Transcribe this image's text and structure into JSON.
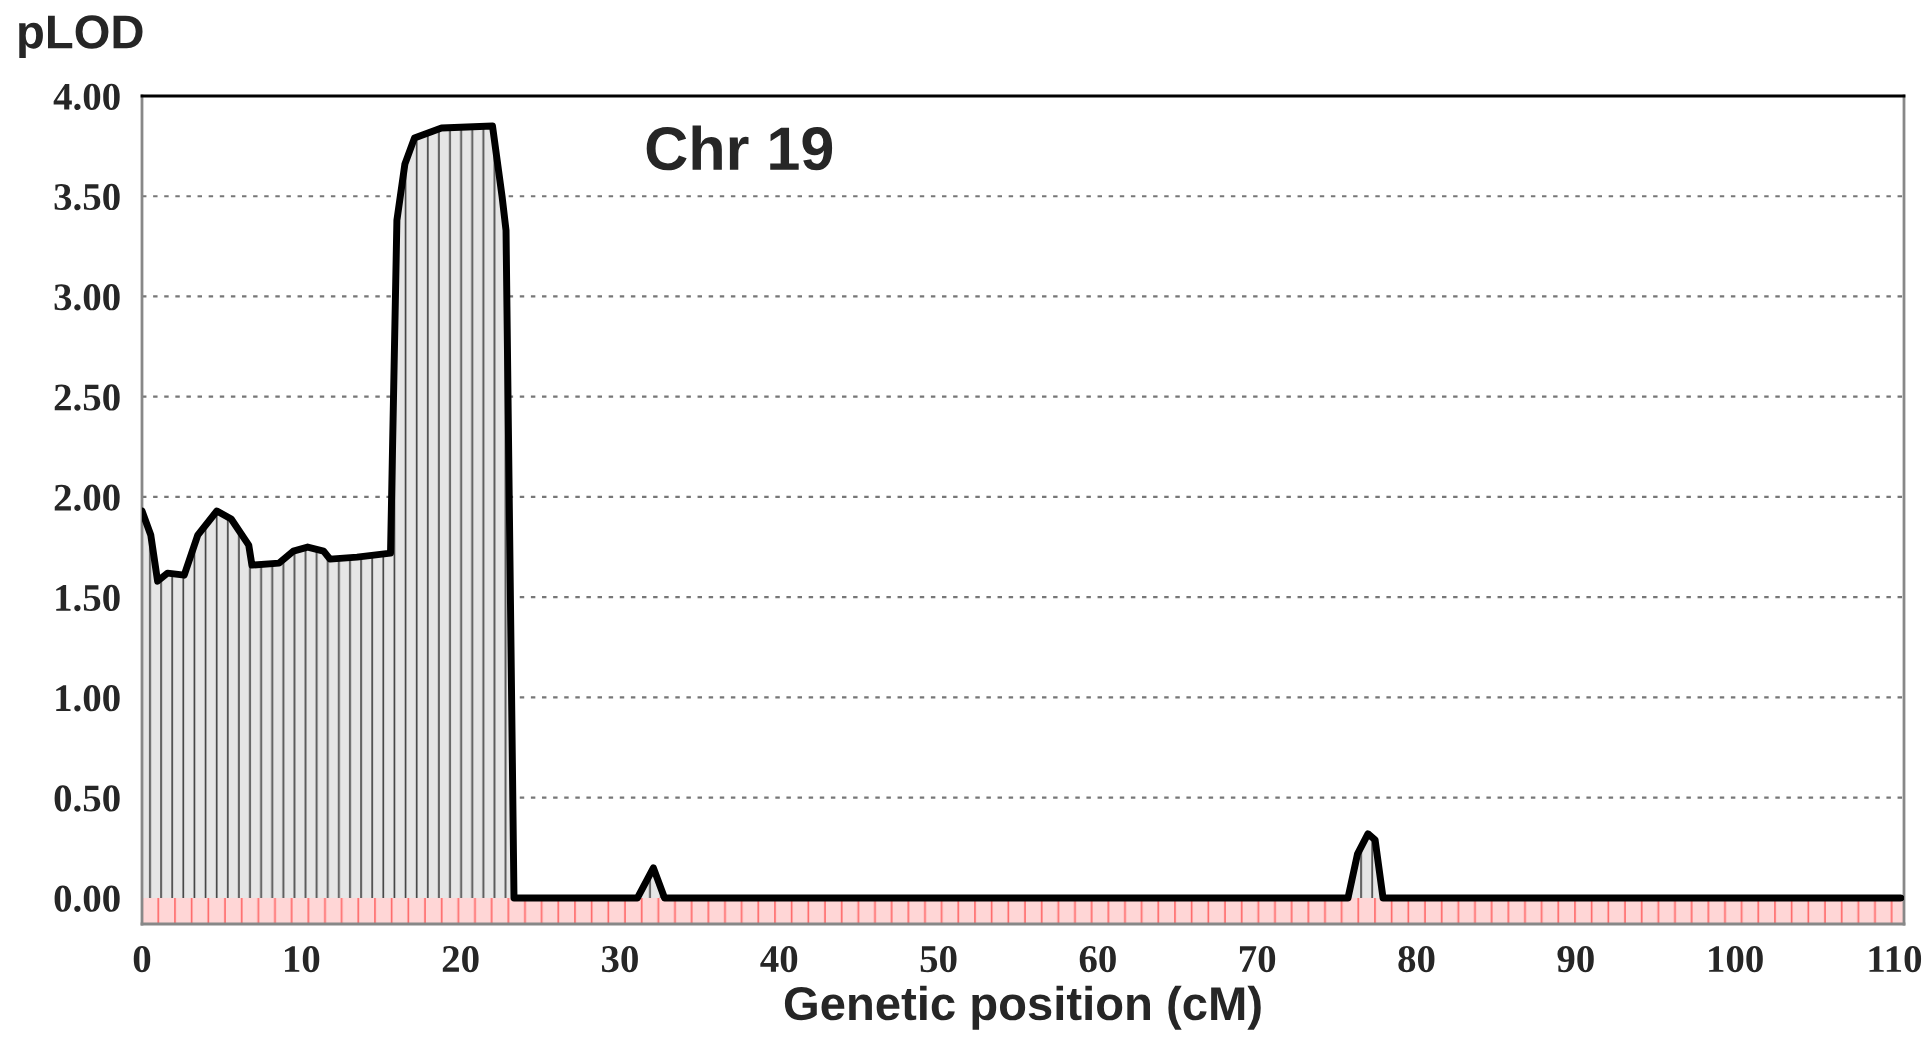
{
  "chart_data": {
    "type": "area",
    "title": "Chr 19",
    "xlabel": "Genetic position (cM)",
    "ylabel": "pLOD",
    "series": [
      {
        "color": "#000000",
        "x": [
          0,
          0.55,
          0.98,
          1.6,
          2.65,
          3.5,
          4.7,
          5.6,
          6.7,
          6.9,
          8.6,
          9.5,
          10.4,
          11.4,
          11.8,
          13.5,
          15.6,
          16.0,
          16.5,
          17.1,
          18.8,
          22.0,
          22.6,
          22.85,
          23.35,
          31.1,
          32.1,
          32.8,
          75.7,
          76.3,
          76.95,
          77.4,
          77.9,
          110.4
        ],
        "values": [
          1.93,
          1.81,
          1.58,
          1.62,
          1.61,
          1.81,
          1.93,
          1.89,
          1.76,
          1.66,
          1.67,
          1.73,
          1.75,
          1.73,
          1.69,
          1.7,
          1.72,
          3.38,
          3.66,
          3.79,
          3.84,
          3.85,
          3.5,
          3.33,
          0,
          0,
          0.15,
          0,
          0,
          0.22,
          0.32,
          0.29,
          0,
          0
        ]
      }
    ],
    "xlim": [
      0,
      110.6
    ],
    "xticks": [
      0,
      10,
      20,
      30,
      40,
      50,
      60,
      70,
      80,
      90,
      100,
      110
    ],
    "ylim": [
      -0.13,
      4.0
    ],
    "yticks": [
      {
        "value": 0,
        "label": "0.00"
      },
      {
        "value": 0.5,
        "label": "0.50"
      },
      {
        "value": 1,
        "label": "1.00"
      },
      {
        "value": 1.5,
        "label": "1.50"
      },
      {
        "value": 2,
        "label": "2.00"
      },
      {
        "value": 2.5,
        "label": "2.50"
      },
      {
        "value": 3,
        "label": "3.00"
      },
      {
        "value": 3.5,
        "label": "3.50"
      },
      {
        "value": 4,
        "label": "4.00"
      }
    ],
    "grid": "y",
    "legend": false
  }
}
